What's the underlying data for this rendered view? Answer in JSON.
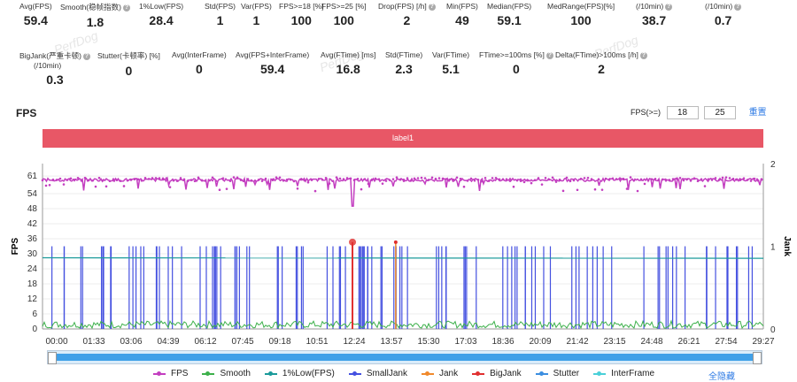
{
  "stats_row1": [
    {
      "label": "Avg(FPS)",
      "value": "59.4",
      "help": false
    },
    {
      "label": "Smooth(稳帧指数)",
      "value": "1.8",
      "help": true
    },
    {
      "label": "1%Low(FPS)",
      "value": "28.4",
      "help": false
    },
    {
      "label": "Std(FPS)",
      "value": "1",
      "help": false
    },
    {
      "label": "Var(FPS)",
      "value": "1",
      "help": false
    },
    {
      "label": "FPS>=18 [%]",
      "value": "100",
      "help": false
    },
    {
      "label": "FPS>=25 [%]",
      "value": "100",
      "help": false
    },
    {
      "label": "Drop(FPS) [/h]",
      "value": "2",
      "help": true
    },
    {
      "label": "Min(FPS)",
      "value": "49",
      "help": false
    },
    {
      "label": "Median(FPS)",
      "value": "59.1",
      "help": false
    },
    {
      "label": "MedRange(FPS)[%]",
      "value": "100",
      "help": false
    },
    {
      "label": "(/10min)",
      "value": "38.7",
      "help": true
    },
    {
      "label": "(/10min)",
      "value": "0.7",
      "help": true
    }
  ],
  "stats_row2": [
    {
      "label": "BigJank(严重卡顿)",
      "label2": "(/10min)",
      "value": "0.3",
      "help": true
    },
    {
      "label": "Stutter(卡顿率) [%]",
      "value": "0",
      "help": false
    },
    {
      "label": "Avg(InterFrame)",
      "value": "0",
      "help": false
    },
    {
      "label": "Avg(FPS+InterFrame)",
      "value": "59.4",
      "help": false
    },
    {
      "label": "Avg(FTime) [ms]",
      "value": "16.8",
      "help": false
    },
    {
      "label": "Std(FTime)",
      "value": "2.3",
      "help": false
    },
    {
      "label": "Var(FTime)",
      "value": "5.1",
      "help": false
    },
    {
      "label": "FTime>=100ms [%]",
      "value": "0",
      "help": true
    },
    {
      "label": "Delta(FTime)>100ms [/h]",
      "value": "2",
      "help": true
    }
  ],
  "watermark": "PerfDog",
  "section_title": "FPS",
  "threshold": {
    "label": "FPS(>=)",
    "value1": "18",
    "value2": "25",
    "reset": "重置"
  },
  "label_bar": "label1",
  "legend_hide_all": "全隐藏",
  "colors": {
    "fps": "#c33ec0",
    "smooth": "#3cb04a",
    "low1": "#1a9a9a",
    "smalljank": "#4450e0",
    "jank": "#f0892b",
    "bigjank": "#e03030",
    "stutter": "#3b8ee0",
    "interframe": "#4ad0d8"
  },
  "chart_data": {
    "type": "line",
    "xlabel": "",
    "ylabel": "FPS",
    "y2label": "Jank",
    "ylim": [
      0,
      66
    ],
    "y2lim": [
      0,
      2
    ],
    "yticks": [
      0,
      6,
      12,
      18,
      24,
      30,
      36,
      42,
      48,
      54,
      61
    ],
    "y2ticks": [
      0,
      1,
      2
    ],
    "xticks": [
      "00:00",
      "01:33",
      "03:06",
      "04:39",
      "06:12",
      "07:45",
      "09:18",
      "10:51",
      "12:24",
      "13:57",
      "15:30",
      "17:03",
      "18:36",
      "20:09",
      "21:42",
      "23:15",
      "24:48",
      "26:21",
      "27:54",
      "29:27"
    ],
    "series": [
      {
        "name": "FPS",
        "summary": "approximately 59-60 FPS throughout, with occasional dips to ~55 and one dip to ~49 near 12:40"
      },
      {
        "name": "Smooth",
        "summary": "small values near 0-2"
      },
      {
        "name": "1%Low(FPS)",
        "summary": "approximately 28.4 flat"
      },
      {
        "name": "SmallJank",
        "summary": "many spikes to 1 across the timeline"
      },
      {
        "name": "Jank",
        "summary": "spike near 14:00"
      },
      {
        "name": "BigJank",
        "summary": "spike at ~12:40"
      },
      {
        "name": "Stutter",
        "summary": "0"
      },
      {
        "name": "InterFrame",
        "summary": "0"
      }
    ],
    "legend": [
      "FPS",
      "Smooth",
      "1%Low(FPS)",
      "SmallJank",
      "Jank",
      "BigJank",
      "Stutter",
      "InterFrame"
    ]
  }
}
